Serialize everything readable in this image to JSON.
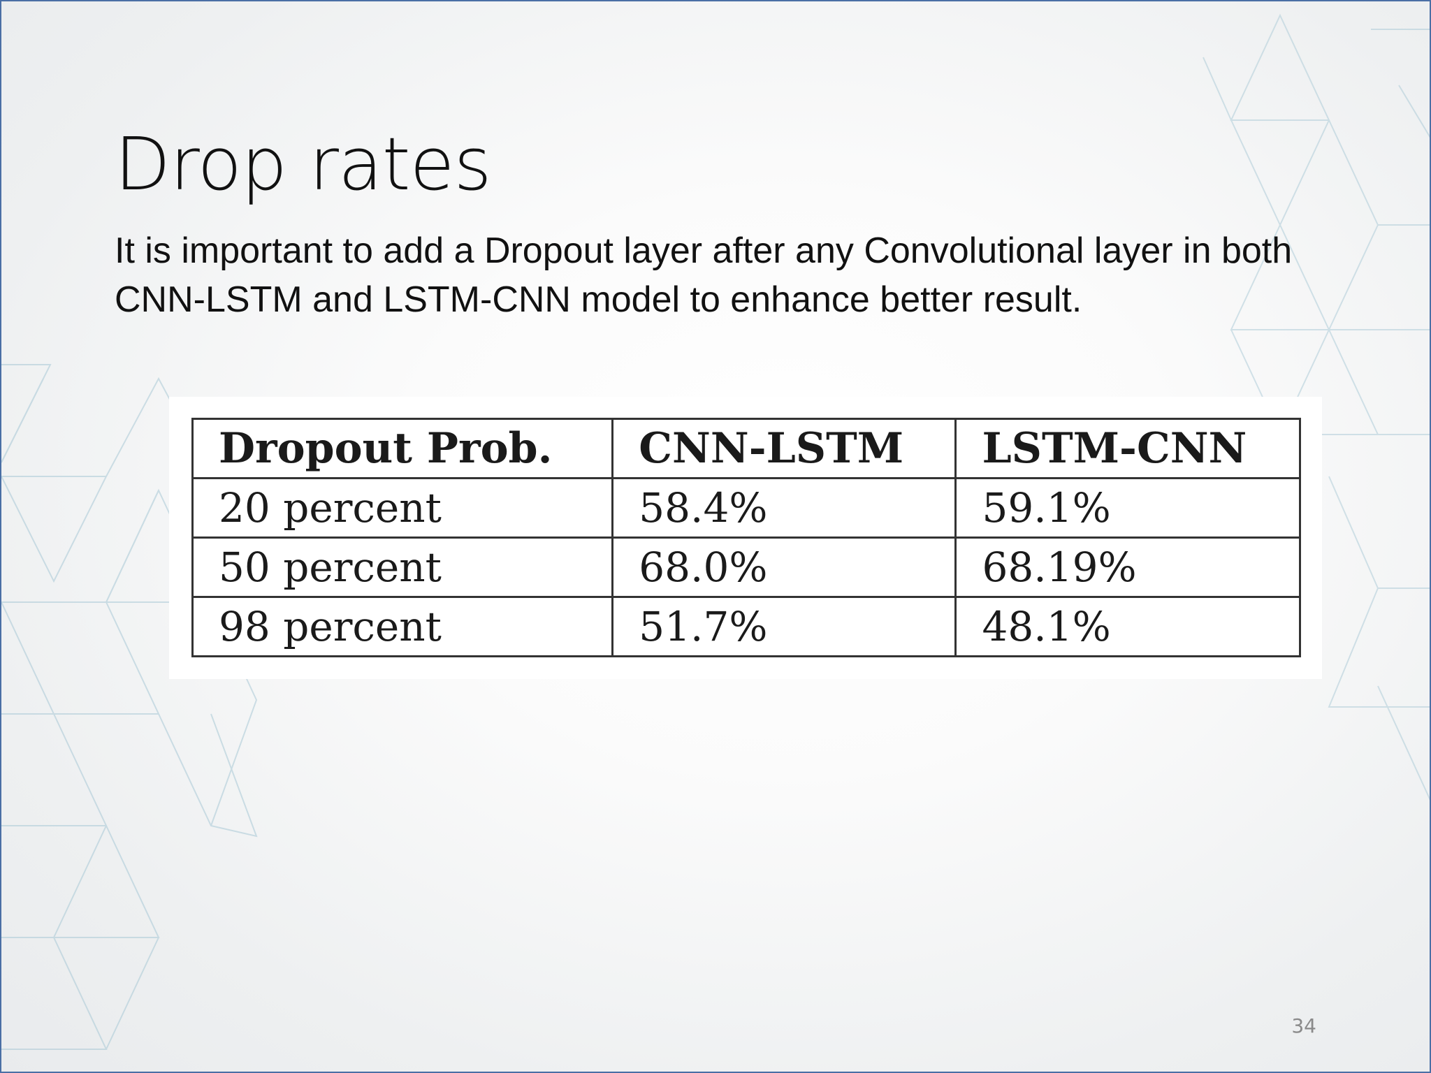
{
  "slide": {
    "title": "Drop rates",
    "body": "It is important to add a Dropout layer after any Convolutional layer in both CNN-LSTM and LSTM-CNN model to enhance better result.",
    "page_number": "34"
  },
  "table": {
    "headers": [
      "Dropout Prob.",
      "CNN-LSTM",
      "LSTM-CNN"
    ],
    "rows": [
      [
        "20 percent",
        "58.4%",
        "59.1%"
      ],
      [
        "50 percent",
        "68.0%",
        "68.19%"
      ],
      [
        "98 percent",
        "51.7%",
        "48.1%"
      ]
    ]
  },
  "colors": {
    "accent_border": "#4a6fa5",
    "pattern_line": "#a9c9d6"
  }
}
